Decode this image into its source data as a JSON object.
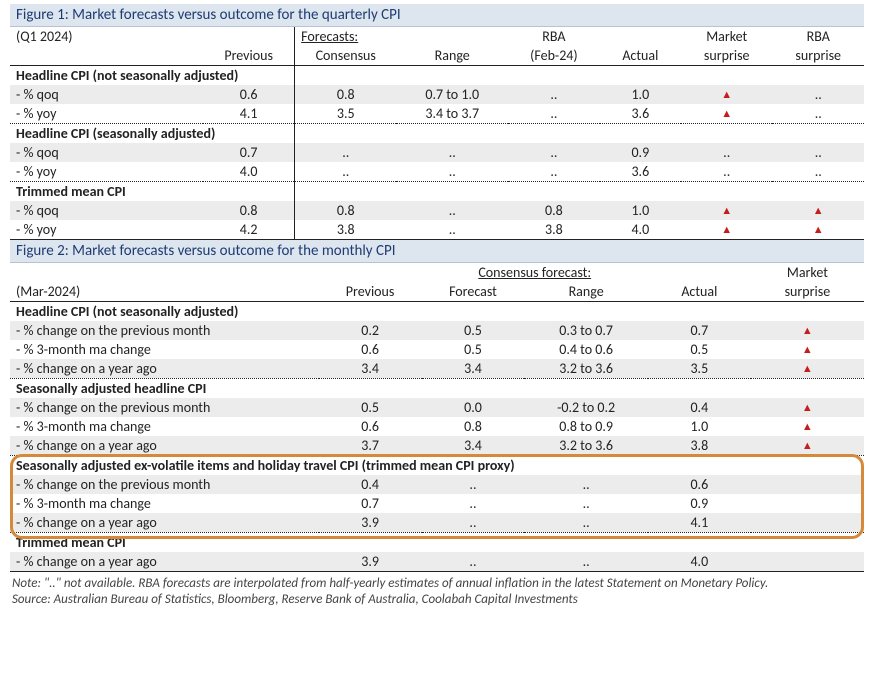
{
  "colors": {
    "header_band": "#dde6ee",
    "header_text": "#1f3b73",
    "row_alt": "#ececec",
    "triangle": "#c51d1d",
    "highlight_border": "#d48a3a",
    "rule": "#222222"
  },
  "fig1": {
    "title": "Figure 1: Market forecasts versus outcome for the quarterly CPI",
    "period": "(Q1 2024)",
    "head": {
      "forecasts": "Forecasts:",
      "previous": "Previous",
      "consensus": "Consensus",
      "range": "Range",
      "rba_top": "RBA",
      "rba_sub": "(Feb-24)",
      "actual": "Actual",
      "mkt_top": "Market",
      "mkt_sub": "surprise",
      "rbs_top": "RBA",
      "rbs_sub": "surprise"
    },
    "sections": [
      {
        "label": "Headline CPI (not seasonally adjusted)",
        "rows": [
          {
            "name": "- % qoq",
            "prev": "0.6",
            "cons": "0.8",
            "range": "0.7 to 1.0",
            "rba": "..",
            "actual": "1.0",
            "mkt": "▲",
            "rbas": ".."
          },
          {
            "name": "- % yoy",
            "prev": "4.1",
            "cons": "3.5",
            "range": "3.4 to 3.7",
            "rba": "..",
            "actual": "3.6",
            "mkt": "▲",
            "rbas": ".."
          }
        ]
      },
      {
        "label": "Headline CPI (seasonally adjusted)",
        "rows": [
          {
            "name": "- % qoq",
            "prev": "0.7",
            "cons": "..",
            "range": "..",
            "rba": "..",
            "actual": "0.9",
            "mkt": "..",
            "rbas": ".."
          },
          {
            "name": "- % yoy",
            "prev": "4.0",
            "cons": "..",
            "range": "..",
            "rba": "..",
            "actual": "3.6",
            "mkt": "..",
            "rbas": ".."
          }
        ]
      },
      {
        "label": "Trimmed mean CPI",
        "rows": [
          {
            "name": "- % qoq",
            "prev": "0.8",
            "cons": "0.8",
            "range": "..",
            "rba": "0.8",
            "actual": "1.0",
            "mkt": "▲",
            "rbas": "▲"
          },
          {
            "name": "- % yoy",
            "prev": "4.2",
            "cons": "3.8",
            "range": "..",
            "rba": "3.8",
            "actual": "4.0",
            "mkt": "▲",
            "rbas": "▲"
          }
        ]
      }
    ]
  },
  "fig2": {
    "title": "Figure 2: Market forecasts versus outcome for the monthly CPI",
    "period": "(Mar-2024)",
    "head": {
      "cons_span": "Consensus forecast:",
      "previous": "Previous",
      "forecast": "Forecast",
      "range": "Range",
      "actual": "Actual",
      "mkt_top": "Market",
      "mkt_sub": "surprise"
    },
    "sections": [
      {
        "label": "Headline CPI (not seasonally adjusted)",
        "rows": [
          {
            "name": "- % change on the previous month",
            "prev": "0.2",
            "fc": "0.5",
            "range": "0.3 to 0.7",
            "actual": "0.7",
            "mkt": "▲"
          },
          {
            "name": "- % 3-month ma change",
            "prev": "0.6",
            "fc": "0.5",
            "range": "0.4 to 0.6",
            "actual": "0.5",
            "mkt": "▲"
          },
          {
            "name": "- % change on a year ago",
            "prev": "3.4",
            "fc": "3.4",
            "range": "3.2 to 3.6",
            "actual": "3.5",
            "mkt": "▲"
          }
        ]
      },
      {
        "label": "Seasonally adjusted headline CPI",
        "rows": [
          {
            "name": "- % change on the previous month",
            "prev": "0.5",
            "fc": "0.0",
            "range": "-0.2 to 0.2",
            "actual": "0.4",
            "mkt": "▲"
          },
          {
            "name": "- % 3-month ma change",
            "prev": "0.6",
            "fc": "0.8",
            "range": "0.8 to 0.9",
            "actual": "1.0",
            "mkt": "▲"
          },
          {
            "name": "- % change on a year ago",
            "prev": "3.7",
            "fc": "3.4",
            "range": "3.2 to 3.6",
            "actual": "3.8",
            "mkt": "▲"
          }
        ]
      },
      {
        "label": "Seasonally adjusted ex-volatile items and holiday travel CPI (trimmed mean CPI proxy)",
        "highlight": true,
        "rows": [
          {
            "name": "- % change on the previous month",
            "prev": "0.4",
            "fc": "..",
            "range": "..",
            "actual": "0.6",
            "mkt": ""
          },
          {
            "name": "- % 3-month ma change",
            "prev": "0.7",
            "fc": "..",
            "range": "..",
            "actual": "0.9",
            "mkt": ""
          },
          {
            "name": "- % change on a year ago",
            "prev": "3.9",
            "fc": "..",
            "range": "..",
            "actual": "4.1",
            "mkt": ""
          }
        ]
      },
      {
        "label": "Trimmed mean CPI",
        "rows": [
          {
            "name": "- % change on a year ago",
            "prev": "3.9",
            "fc": "..",
            "range": "..",
            "actual": "4.0",
            "mkt": ""
          }
        ]
      }
    ]
  },
  "note_line1": "Note: \"..\" not available.  RBA forecasts are interpolated from half-yearly estimates of annual inflation in the latest Statement on Monetary Policy.",
  "note_line2": "Source: Australian Bureau of Statistics, Bloomberg, Reserve Bank of Australia, Coolabah Capital Investments"
}
